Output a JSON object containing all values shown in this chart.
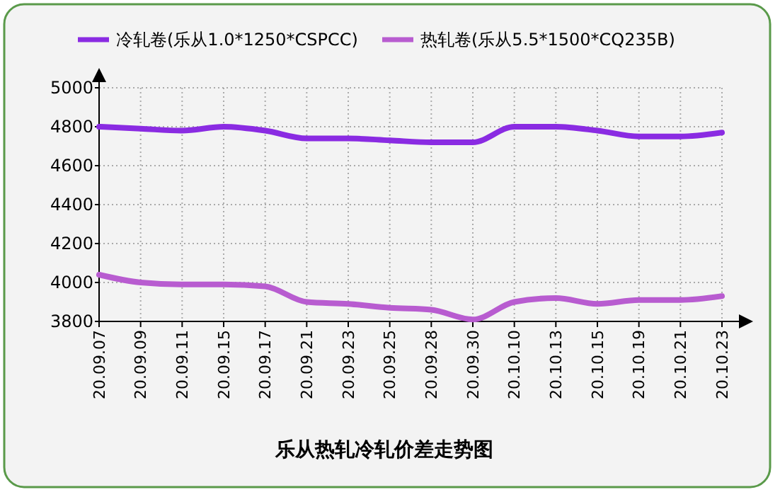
{
  "chart_data": {
    "type": "line",
    "title": "乐从热轧冷轧价差走势图",
    "categories": [
      "20.09.07",
      "20.09.09",
      "20.09.11",
      "20.09.15",
      "20.09.17",
      "20.09.21",
      "20.09.23",
      "20.09.25",
      "20.09.28",
      "20.09.30",
      "20.10.10",
      "20.10.13",
      "20.10.15",
      "20.10.19",
      "20.10.21",
      "20.10.23"
    ],
    "series": [
      {
        "name": "冷轧卷(乐从1.0*1250*CSPCC)",
        "color": "#8a2be2",
        "values": [
          4800,
          4790,
          4780,
          4800,
          4780,
          4740,
          4740,
          4730,
          4720,
          4720,
          4800,
          4800,
          4780,
          4750,
          4750,
          4770
        ]
      },
      {
        "name": "热轧卷(乐从5.5*1500*CQ235B)",
        "color": "#b85cd0",
        "values": [
          4040,
          4000,
          3990,
          3990,
          3980,
          3900,
          3890,
          3870,
          3860,
          3810,
          3900,
          3920,
          3890,
          3910,
          3910,
          3930
        ]
      }
    ],
    "ylim": [
      3800,
      5000
    ],
    "yticks": [
      3800,
      4000,
      4200,
      4400,
      4600,
      4800,
      5000
    ],
    "grid": true,
    "legend": "top",
    "marker": "none",
    "line_style": "solid"
  }
}
